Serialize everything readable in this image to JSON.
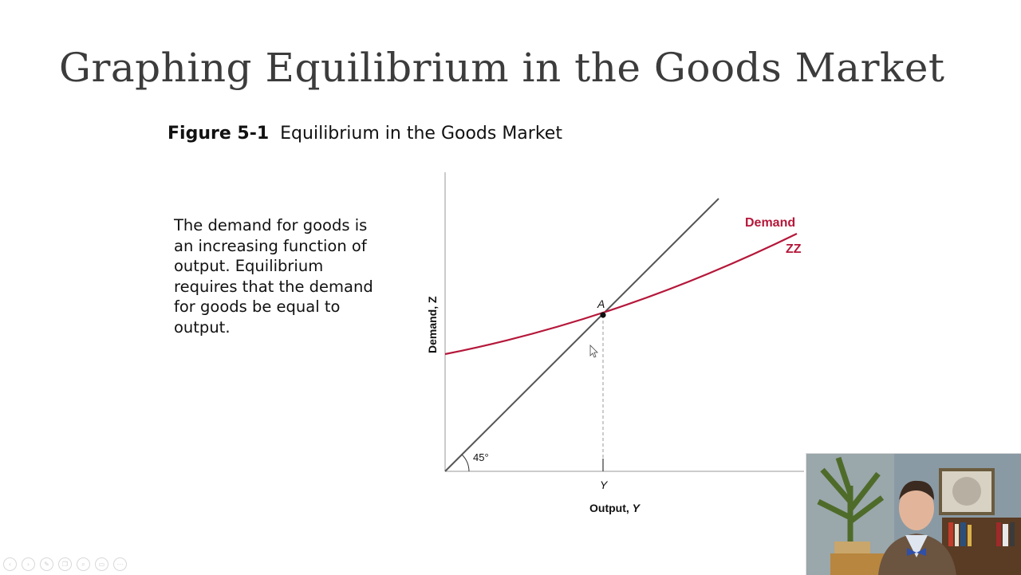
{
  "slide": {
    "title": "Graphing Equilibrium in the Goods Market"
  },
  "figure": {
    "number": "Figure 5-1",
    "caption": "Equilibrium in the Goods Market"
  },
  "description": "The demand for goods is an increasing function of output. Equilibrium requires that the demand for goods be equal to output.",
  "diagram": {
    "y_axis_label": "Demand, Z",
    "x_axis_label_prefix": "Output, ",
    "x_axis_label_var": "Y",
    "equilibrium_point_label": "A",
    "equilibrium_tick_label": "Y",
    "angle_label": "45°",
    "demand_label": "Demand",
    "demand_curve_name": "ZZ",
    "colors": {
      "demand_curve": "#b5173a",
      "line_45": "#555555",
      "axes": "#999999"
    }
  },
  "player_controls": [
    "prev-icon",
    "play-icon",
    "pen-icon",
    "copy-icon",
    "zoom-icon",
    "subtitles-icon",
    "more-icon"
  ],
  "webcam": {
    "description_icon": "presenter-video"
  }
}
